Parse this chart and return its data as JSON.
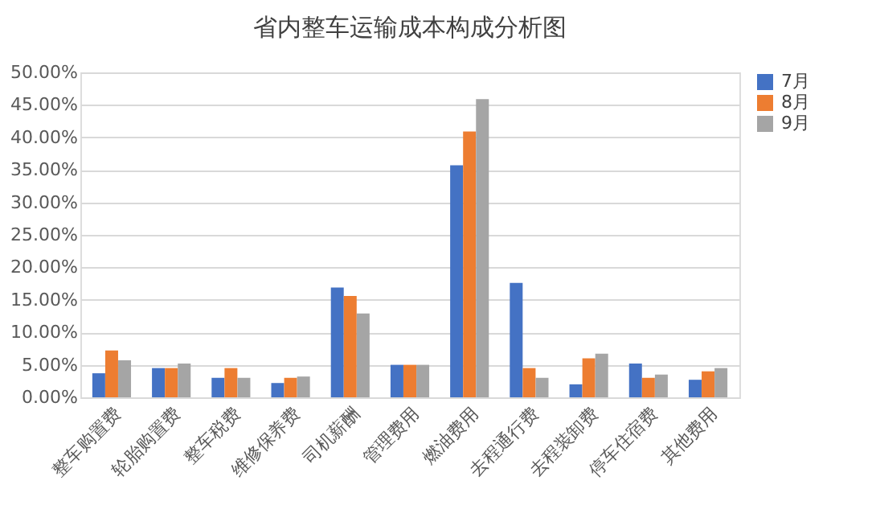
{
  "chart_data": {
    "type": "bar",
    "title": "省内整车运输成本构成分析图",
    "categories": [
      "整车购置费",
      "轮胎购置费",
      "整车税费",
      "维修保养费",
      "司机薪酬",
      "管理费用",
      "燃油费用",
      "去程通行费",
      "去程装卸费",
      "停车住宿费",
      "其他费用"
    ],
    "series": [
      {
        "name": "7月",
        "color": "#4472c4",
        "values": [
          3.7,
          4.5,
          3.0,
          2.2,
          16.9,
          5.0,
          35.7,
          17.6,
          2.0,
          5.2,
          2.7
        ]
      },
      {
        "name": "8月",
        "color": "#ed7d31",
        "values": [
          7.2,
          4.5,
          4.5,
          3.0,
          15.6,
          5.0,
          40.9,
          4.5,
          6.0,
          3.0,
          4.0
        ]
      },
      {
        "name": "9月",
        "color": "#a5a5a5",
        "values": [
          5.7,
          5.2,
          3.0,
          3.2,
          12.9,
          5.0,
          45.9,
          3.0,
          6.7,
          3.5,
          4.5
        ]
      }
    ],
    "ylim": [
      0,
      50
    ],
    "yticks": [
      {
        "value": 0,
        "label": "0.00%"
      },
      {
        "value": 5,
        "label": "5.00%"
      },
      {
        "value": 10,
        "label": "10.00%"
      },
      {
        "value": 15,
        "label": "15.00%"
      },
      {
        "value": 20,
        "label": "20.00%"
      },
      {
        "value": 25,
        "label": "25.00%"
      },
      {
        "value": 30,
        "label": "30.00%"
      },
      {
        "value": 35,
        "label": "35.00%"
      },
      {
        "value": 40,
        "label": "40.00%"
      },
      {
        "value": 45,
        "label": "45.00%"
      },
      {
        "value": 50,
        "label": "50.00%"
      }
    ],
    "grid": "y",
    "legend": "right"
  }
}
